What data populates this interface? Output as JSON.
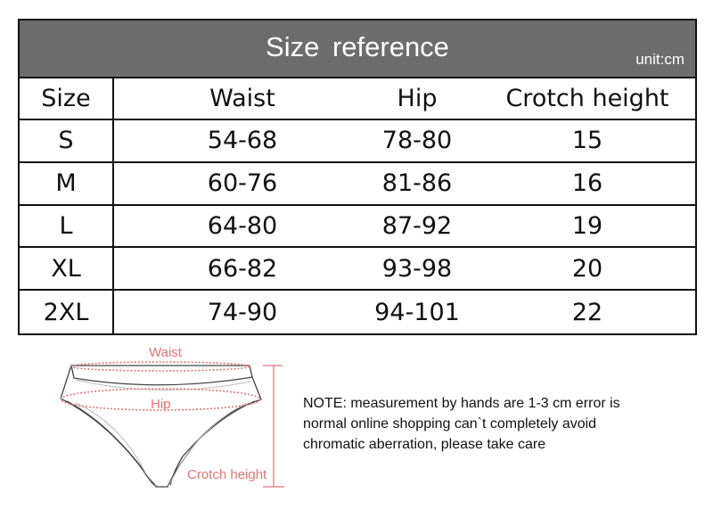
{
  "table": {
    "title": "Size  reference",
    "unit": "unit:cm",
    "headers": [
      "Size",
      "Waist",
      "Hip",
      "Crotch height"
    ],
    "rows": [
      [
        "S",
        "54-68",
        "78-80",
        "15"
      ],
      [
        "M",
        "60-76",
        "81-86",
        "16"
      ],
      [
        "L",
        "64-80",
        "87-92",
        "19"
      ],
      [
        "XL",
        "66-82",
        "93-98",
        "20"
      ],
      [
        "2XL",
        "74-90",
        "94-101",
        "22"
      ]
    ],
    "header_color": "#6d6d6d"
  },
  "illustration": {
    "waist_label": "Waist",
    "hip_label": "Hip",
    "crotch_label": "Crotch height",
    "label_color": "#e87373"
  },
  "note": {
    "lines": [
      "NOTE: measurement by hands are 1-3 cm error is",
      "normal online shopping can`t completely avoid",
      "chromatic aberration, please take care"
    ]
  }
}
